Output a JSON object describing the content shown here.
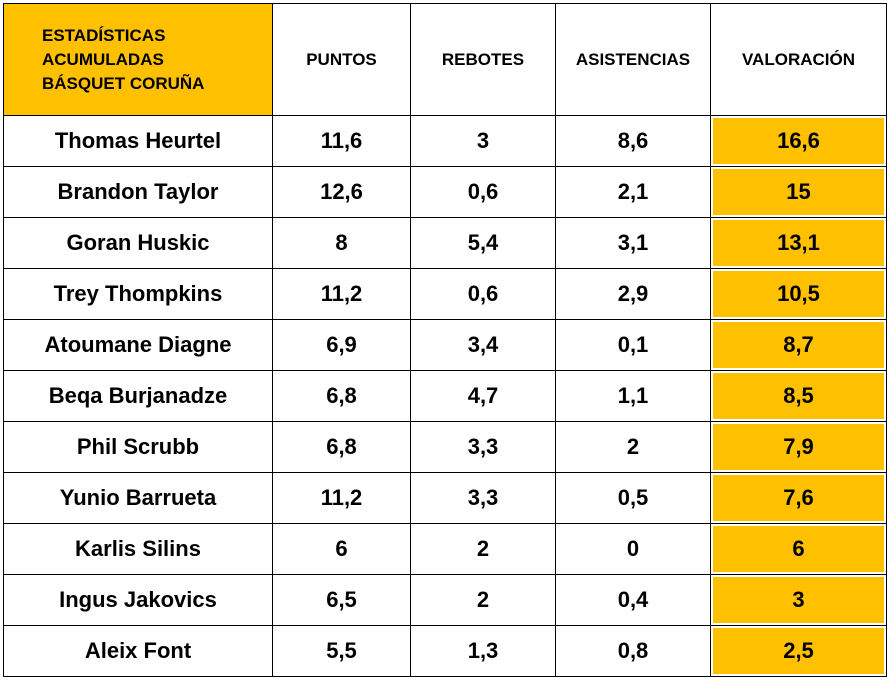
{
  "table": {
    "title_lines": [
      "ESTADÍSTICAS",
      "ACUMULADAS",
      "BÁSQUET CORUÑA"
    ],
    "columns": [
      "PUNTOS",
      "REBOTES",
      "ASISTENCIAS",
      "VALORACIÓN"
    ],
    "rows": [
      [
        "Thomas Heurtel",
        "11,6",
        "3",
        "8,6",
        "16,6"
      ],
      [
        "Brandon Taylor",
        "12,6",
        "0,6",
        "2,1",
        "15"
      ],
      [
        "Goran Huskic",
        "8",
        "5,4",
        "3,1",
        "13,1"
      ],
      [
        "Trey Thompkins",
        "11,2",
        "0,6",
        "2,9",
        "10,5"
      ],
      [
        "Atoumane Diagne",
        "6,9",
        "3,4",
        "0,1",
        "8,7"
      ],
      [
        "Beqa Burjanadze",
        "6,8",
        "4,7",
        "1,1",
        "8,5"
      ],
      [
        "Phil Scrubb",
        "6,8",
        "3,3",
        "2",
        "7,9"
      ],
      [
        "Yunio Barrueta",
        "11,2",
        "3,3",
        "0,5",
        "7,6"
      ],
      [
        "Karlis Silins",
        "6",
        "2",
        "0",
        "6"
      ],
      [
        "Ingus Jakovics",
        "6,5",
        "2",
        "0,4",
        "3"
      ],
      [
        "Aleix Font",
        "5,5",
        "1,3",
        "0,8",
        "2,5"
      ]
    ]
  }
}
